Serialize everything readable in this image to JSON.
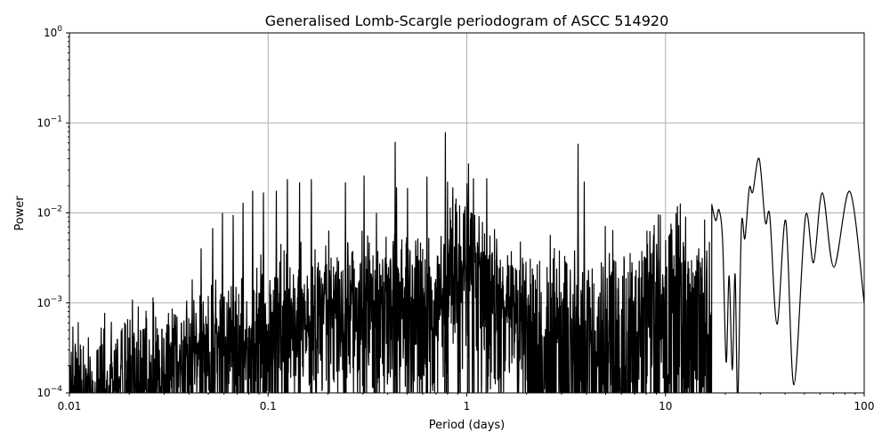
{
  "chart_data": {
    "type": "line",
    "title": "Generalised Lomb-Scargle periodogram of ASCC 514920",
    "xlabel": "Period (days)",
    "ylabel": "Power",
    "xscale": "log",
    "yscale": "log",
    "xlim": [
      0.01,
      100
    ],
    "ylim": [
      0.0001,
      1
    ],
    "grid": true,
    "line_color": "#000000",
    "grid_color": "#b0b0b0",
    "x_ticks": [
      {
        "value": 0.01,
        "label": "0.01"
      },
      {
        "value": 0.1,
        "label": "0.1"
      },
      {
        "value": 1,
        "label": "1"
      },
      {
        "value": 10,
        "label": "10"
      },
      {
        "value": 100,
        "label": "100"
      }
    ],
    "y_ticks": [
      {
        "value": 0.0001,
        "base": "10",
        "exp": "−4"
      },
      {
        "value": 0.001,
        "base": "10",
        "exp": "−3"
      },
      {
        "value": 0.01,
        "base": "10",
        "exp": "−2"
      },
      {
        "value": 0.1,
        "base": "10",
        "exp": "−1"
      },
      {
        "value": 1,
        "base": "10",
        "exp": "0"
      }
    ],
    "noise_floor": [
      [
        0.01,
        0.00013
      ],
      [
        0.02,
        0.00016
      ],
      [
        0.03,
        0.00024
      ],
      [
        0.05,
        0.0004
      ],
      [
        0.1,
        0.0006
      ],
      [
        0.2,
        0.0009
      ],
      [
        0.35,
        0.0013
      ],
      [
        0.5,
        0.0012
      ],
      [
        0.7,
        0.001
      ],
      [
        0.85,
        0.0035
      ],
      [
        1.0,
        0.0045
      ],
      [
        1.2,
        0.0025
      ],
      [
        1.6,
        0.0011
      ],
      [
        2.5,
        0.0008
      ],
      [
        4,
        0.0008
      ],
      [
        6,
        0.0012
      ],
      [
        9,
        0.0022
      ],
      [
        12,
        0.0025
      ],
      [
        16,
        0.002
      ]
    ],
    "peaks": [
      [
        0.0415,
        0.0018
      ],
      [
        0.046,
        0.004
      ],
      [
        0.0526,
        0.0067
      ],
      [
        0.0589,
        0.0099
      ],
      [
        0.0667,
        0.0094
      ],
      [
        0.0748,
        0.0128
      ],
      [
        0.0836,
        0.0174
      ],
      [
        0.0947,
        0.0167
      ],
      [
        0.11,
        0.0174
      ],
      [
        0.125,
        0.0235
      ],
      [
        0.144,
        0.0216
      ],
      [
        0.165,
        0.0235
      ],
      [
        0.202,
        0.0063
      ],
      [
        0.245,
        0.0216
      ],
      [
        0.304,
        0.0257
      ],
      [
        0.351,
        0.0099
      ],
      [
        0.436,
        0.061
      ],
      [
        0.443,
        0.019
      ],
      [
        0.503,
        0.0187
      ],
      [
        0.63,
        0.025
      ],
      [
        0.78,
        0.078
      ],
      [
        0.8,
        0.022
      ],
      [
        0.92,
        0.012
      ],
      [
        1.02,
        0.035
      ],
      [
        1.08,
        0.024
      ],
      [
        1.26,
        0.024
      ],
      [
        3.63,
        0.058
      ],
      [
        3.9,
        0.022
      ],
      [
        9.2,
        0.0095
      ],
      [
        11.3,
        0.0098
      ]
    ],
    "smooth_segment": [
      [
        17.1,
        0.0124
      ],
      [
        17.9,
        0.0082
      ],
      [
        18.6,
        0.0108
      ],
      [
        19.4,
        0.0047
      ],
      [
        20.2,
        0.00022
      ],
      [
        20.9,
        0.002
      ],
      [
        21.7,
        0.00018
      ],
      [
        22.4,
        0.0021
      ],
      [
        23.1,
        8e-05
      ],
      [
        24.1,
        0.007
      ],
      [
        25.1,
        0.0052
      ],
      [
        26.4,
        0.0187
      ],
      [
        27.5,
        0.0171
      ],
      [
        29.6,
        0.04
      ],
      [
        31.8,
        0.0079
      ],
      [
        33.5,
        0.0092
      ],
      [
        36.4,
        0.00058
      ],
      [
        40.3,
        0.0082
      ],
      [
        44.3,
        0.000123
      ],
      [
        50.6,
        0.009
      ],
      [
        55.6,
        0.0028
      ],
      [
        61.6,
        0.0167
      ],
      [
        70.4,
        0.0025
      ],
      [
        84.7,
        0.0173
      ],
      [
        100,
        0.001
      ]
    ]
  }
}
